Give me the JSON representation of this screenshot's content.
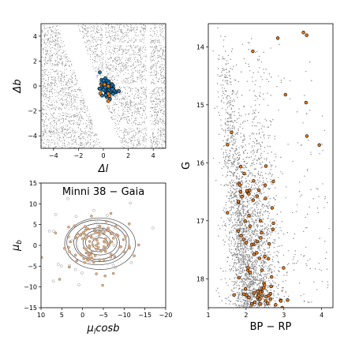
{
  "chart_data": [
    {
      "type": "scatter",
      "panel": "sky",
      "xlabel": "Δl",
      "ylabel": "Δb",
      "xlim": [
        -5,
        5
      ],
      "ylim": [
        -5,
        5
      ],
      "xticks": [
        -4,
        -2,
        0,
        2,
        4
      ],
      "yticks": [
        -4,
        -2,
        0,
        2,
        4
      ],
      "colors": {
        "field": "#8c8c8c",
        "member_edge": "#000000",
        "member_fill": "#1f77b4",
        "member_highlight": "#ff7f0e"
      }
    },
    {
      "type": "scatter",
      "panel": "proper-motion",
      "title": "Minni 38  −  Gaia",
      "xlabel": "μ_l cos b",
      "ylabel": "μ_b",
      "xlim": [
        10,
        -20
      ],
      "ylim": [
        -15,
        15
      ],
      "xticks": [
        10,
        5,
        0,
        -5,
        -10,
        -15,
        -20
      ],
      "yticks": [
        -15,
        -10,
        -5,
        0,
        5,
        10,
        15
      ],
      "contour_center": [
        -4,
        0.5
      ],
      "colors": {
        "contour": "#444444",
        "member_fill": "#d9b08c",
        "field_open": "#999999"
      }
    },
    {
      "type": "scatter",
      "panel": "cmd",
      "xlabel": "BP − RP",
      "ylabel": "G",
      "xlim": [
        1,
        4.3
      ],
      "ylim": [
        18.5,
        13.6
      ],
      "xticks": [
        1,
        2,
        3,
        4
      ],
      "yticks": [
        14,
        15,
        16,
        17,
        18
      ],
      "colors": {
        "field": "#8c8c8c",
        "member_fill": "#e07a20",
        "member_edge": "#000000"
      }
    }
  ]
}
